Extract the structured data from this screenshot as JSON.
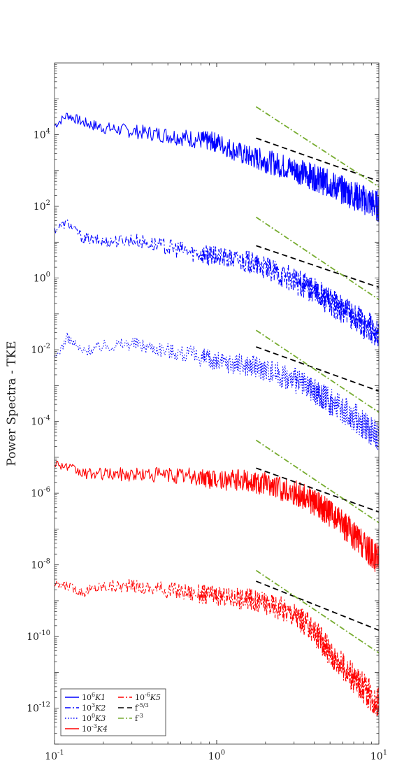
{
  "chart_data": {
    "type": "line",
    "xscale": "log",
    "yscale": "log",
    "xlim": [
      0.1,
      10
    ],
    "ylim": [
      1e-13,
      1000000.0
    ],
    "xlabel": "",
    "ylabel": "Power Spectra - TKE",
    "x_ticks": [
      {
        "value": 0.1,
        "base": "10",
        "exp": "-1"
      },
      {
        "value": 1,
        "base": "10",
        "exp": "0"
      },
      {
        "value": 10,
        "base": "10",
        "exp": "1"
      }
    ],
    "y_ticks": [
      {
        "value": 10000.0,
        "base": "10",
        "exp": "4"
      },
      {
        "value": 100.0,
        "base": "10",
        "exp": "2"
      },
      {
        "value": 1,
        "base": "10",
        "exp": "0"
      },
      {
        "value": 0.01,
        "base": "10",
        "exp": "-2"
      },
      {
        "value": 0.0001,
        "base": "10",
        "exp": "-4"
      },
      {
        "value": 1e-06,
        "base": "10",
        "exp": "-6"
      },
      {
        "value": 1e-08,
        "base": "10",
        "exp": "-8"
      },
      {
        "value": 1e-10,
        "base": "10",
        "exp": "-10"
      },
      {
        "value": 1e-12,
        "base": "10",
        "exp": "-12"
      }
    ],
    "grid": false,
    "legend_position": "bottom-left",
    "series": [
      {
        "name": "10^6 K1",
        "color": "#0000ff",
        "dash": "solid",
        "x": [
          0.1,
          0.12,
          0.15,
          0.2,
          0.3,
          0.5,
          0.8,
          1.0,
          1.5,
          2.0,
          3.0,
          4.0,
          5.0,
          7.0,
          10.0
        ],
        "y": [
          20000,
          40000,
          25000,
          18000,
          15000,
          12000,
          9000,
          8000,
          3500,
          2500,
          1500,
          900,
          600,
          300,
          150
        ]
      },
      {
        "name": "10^3 K2",
        "color": "#0000ff",
        "dash": "dashdot",
        "x": [
          0.1,
          0.12,
          0.15,
          0.2,
          0.3,
          0.5,
          0.8,
          1.0,
          1.5,
          2.0,
          3.0,
          4.0,
          5.0,
          7.0,
          10.0
        ],
        "y": [
          25,
          40,
          15,
          12,
          14,
          9,
          6,
          5,
          4,
          2.5,
          1.2,
          0.6,
          0.3,
          0.12,
          0.04
        ]
      },
      {
        "name": "10^0 K3",
        "color": "#0000ff",
        "dash": "dotted",
        "x": [
          0.1,
          0.12,
          0.15,
          0.2,
          0.3,
          0.5,
          0.8,
          1.0,
          1.5,
          2.0,
          3.0,
          4.0,
          5.0,
          7.0,
          10.0
        ],
        "y": [
          0.006,
          0.025,
          0.01,
          0.015,
          0.018,
          0.012,
          0.008,
          0.006,
          0.005,
          0.004,
          0.002,
          0.001,
          0.0005,
          0.0002,
          5e-05
        ]
      },
      {
        "name": "10^-3 K4",
        "color": "#ff0000",
        "dash": "solid",
        "x": [
          0.1,
          0.12,
          0.15,
          0.2,
          0.3,
          0.5,
          0.8,
          1.0,
          1.5,
          2.0,
          3.0,
          4.0,
          5.0,
          7.0,
          10.0
        ],
        "y": [
          8e-06,
          6e-06,
          4e-06,
          4e-06,
          4e-06,
          4e-06,
          3.5e-06,
          3e-06,
          3e-06,
          2.5e-06,
          1.5e-06,
          8e-07,
          4e-07,
          1e-07,
          2e-08
        ]
      },
      {
        "name": "10^-6 K5",
        "color": "#ff0000",
        "dash": "dashdot",
        "x": [
          0.1,
          0.12,
          0.15,
          0.2,
          0.3,
          0.5,
          0.8,
          1.0,
          1.5,
          2.0,
          3.0,
          4.0,
          5.0,
          7.0,
          10.0
        ],
        "y": [
          3e-09,
          3e-09,
          2e-09,
          3e-09,
          3e-09,
          2.5e-09,
          2e-09,
          1.8e-09,
          1.5e-09,
          1.2e-09,
          6e-10,
          2e-10,
          5e-11,
          1e-11,
          2e-12
        ]
      },
      {
        "name": "f^-5/3",
        "color": "#000000",
        "dash": "dashed",
        "x": [
          1.75,
          10
        ],
        "y": [
          8000,
          500
        ]
      },
      {
        "name": "f^-3",
        "color": "#77ac30",
        "dash": "dashdot",
        "x": [
          1.75,
          10
        ],
        "y": [
          60000,
          350
        ]
      }
    ],
    "reference_lines": [
      {
        "name": "f^-5/3",
        "color": "#000000",
        "dash": "dashed",
        "x": [
          1.75,
          10
        ],
        "y": [
          8,
          0.55
        ]
      },
      {
        "name": "f^-5/3",
        "color": "#000000",
        "dash": "dashed",
        "x": [
          1.75,
          10
        ],
        "y": [
          0.012,
          0.0007
        ]
      },
      {
        "name": "f^-5/3",
        "color": "#000000",
        "dash": "dashed",
        "x": [
          1.75,
          10
        ],
        "y": [
          5e-06,
          3e-07
        ]
      },
      {
        "name": "f^-5/3",
        "color": "#000000",
        "dash": "dashed",
        "x": [
          1.75,
          10
        ],
        "y": [
          3.5e-09,
          1.5e-10
        ]
      },
      {
        "name": "f^-3",
        "color": "#77ac30",
        "dash": "dashdot",
        "x": [
          1.75,
          10
        ],
        "y": [
          50,
          0.25
        ]
      },
      {
        "name": "f^-3",
        "color": "#77ac30",
        "dash": "dashdot",
        "x": [
          1.75,
          10
        ],
        "y": [
          0.035,
          0.00018
        ]
      },
      {
        "name": "f^-3",
        "color": "#77ac30",
        "dash": "dashdot",
        "x": [
          1.75,
          10
        ],
        "y": [
          3e-05,
          1.5e-07
        ]
      },
      {
        "name": "f^-3",
        "color": "#77ac30",
        "dash": "dashdot",
        "x": [
          1.75,
          10
        ],
        "y": [
          7e-09,
          3.5e-11
        ]
      }
    ],
    "legend": [
      {
        "base": "10",
        "exp": "6",
        "label": "K1",
        "color": "#0000ff",
        "dash": "solid"
      },
      {
        "base": "10",
        "exp": "-6",
        "label": "K5",
        "color": "#ff0000",
        "dash": "dashdot"
      },
      {
        "base": "10",
        "exp": "3",
        "label": "K2",
        "color": "#0000ff",
        "dash": "dashdot"
      },
      {
        "base": "f",
        "exp": "-5/3",
        "label": "",
        "color": "#000000",
        "dash": "dashed"
      },
      {
        "base": "10",
        "exp": "0",
        "label": "K3",
        "color": "#0000ff",
        "dash": "dotted"
      },
      {
        "base": "f",
        "exp": "-3",
        "label": "",
        "color": "#77ac30",
        "dash": "dashdot"
      },
      {
        "base": "10",
        "exp": "-3",
        "label": "K4",
        "color": "#ff0000",
        "dash": "solid"
      }
    ]
  }
}
